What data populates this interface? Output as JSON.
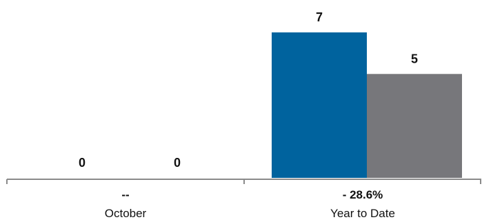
{
  "chart_data": {
    "type": "bar",
    "categories": [
      "October",
      "Year to Date"
    ],
    "category_changes": [
      "--",
      "- 28.6%"
    ],
    "series": [
      {
        "values": [
          0,
          7
        ],
        "color": "#00639e"
      },
      {
        "values": [
          0,
          5
        ],
        "color": "#77777b"
      }
    ],
    "data_labels": [
      [
        "0",
        "7"
      ],
      [
        "0",
        "5"
      ]
    ],
    "ylim": [
      0,
      7
    ],
    "axis_color": "#8a8a8a",
    "grid": false,
    "legend": "none"
  }
}
